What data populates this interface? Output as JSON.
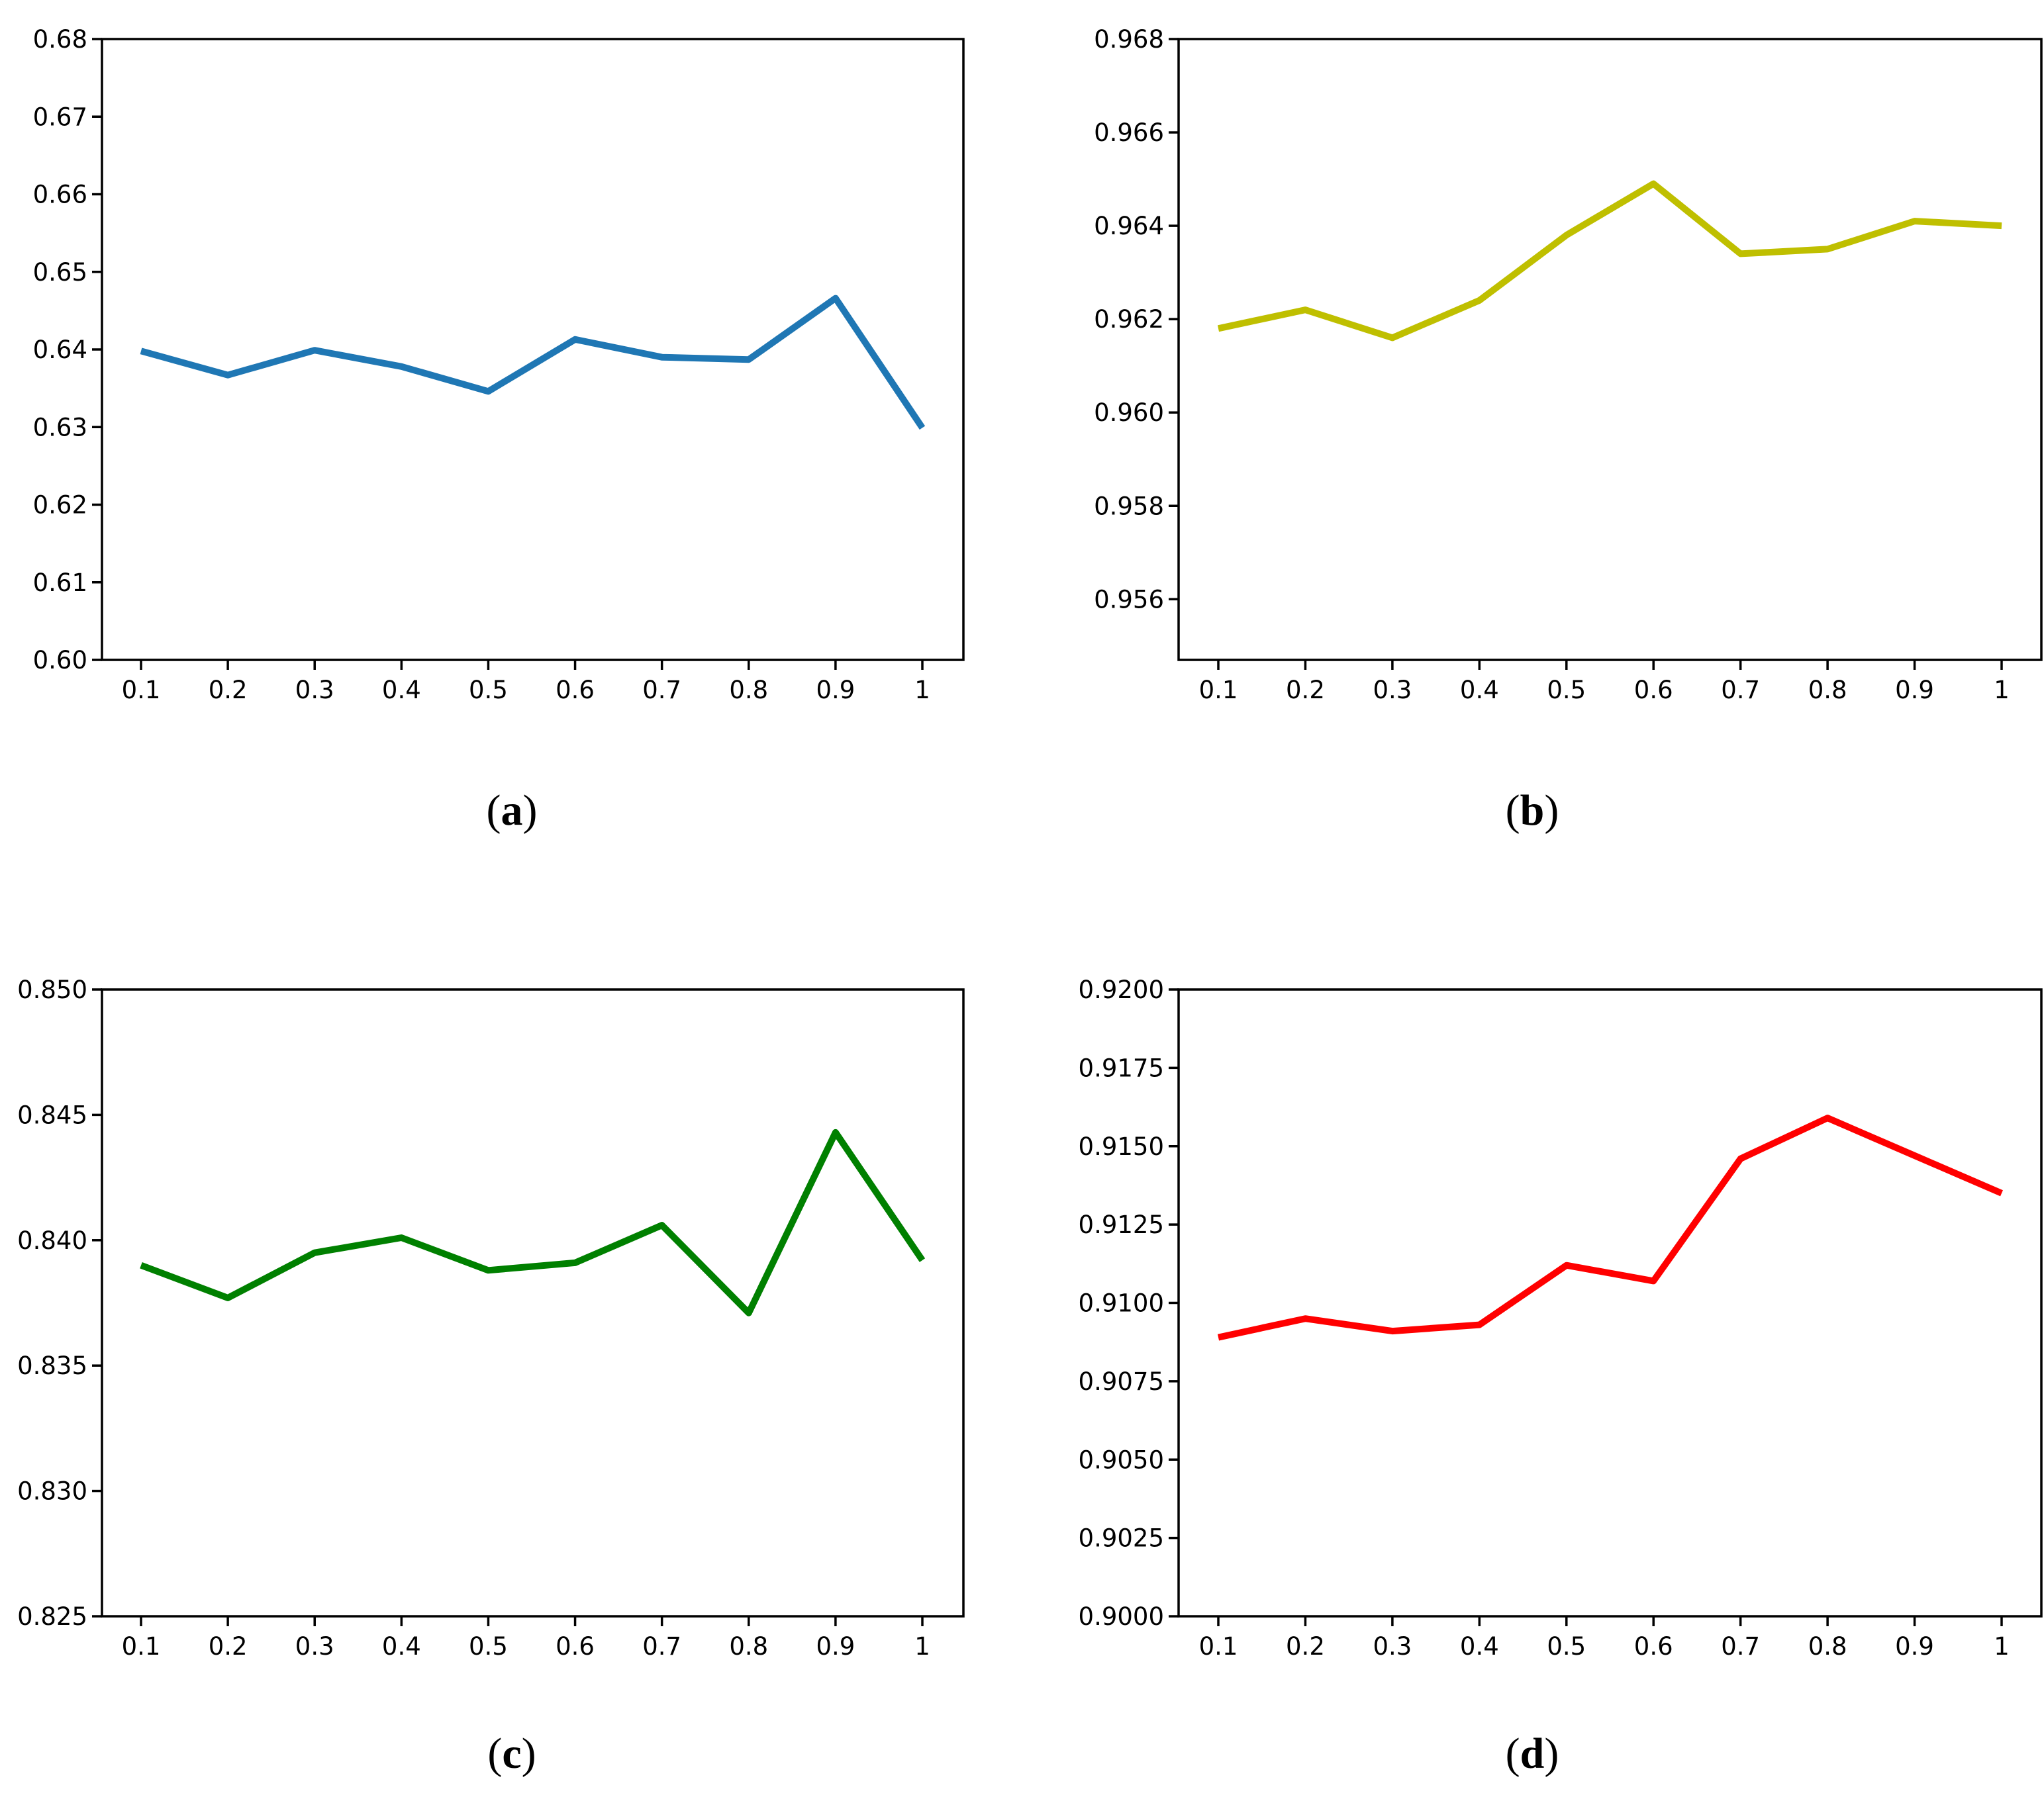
{
  "figure_background": "#ffffff",
  "axis_color": "#000000",
  "chart_data": [
    {
      "id": "a",
      "type": "line",
      "caption_open": "(",
      "caption_letter": "a",
      "caption_close": ")",
      "line_color": "#1f77b4",
      "x": [
        0.1,
        0.2,
        0.3,
        0.4,
        0.5,
        0.6,
        0.7,
        0.8,
        0.9,
        1.0
      ],
      "x_tick_labels": [
        "0.1",
        "0.2",
        "0.3",
        "0.4",
        "0.5",
        "0.6",
        "0.7",
        "0.8",
        "0.9",
        "1"
      ],
      "values": [
        0.6398,
        0.6367,
        0.6399,
        0.6378,
        0.6346,
        0.6413,
        0.639,
        0.6387,
        0.6466,
        0.6299
      ],
      "ylim": [
        0.6,
        0.68
      ],
      "y_tick_values": [
        0.6,
        0.61,
        0.62,
        0.63,
        0.64,
        0.65,
        0.66,
        0.67,
        0.68
      ],
      "y_tick_labels": [
        "0.60",
        "0.61",
        "0.62",
        "0.63",
        "0.64",
        "0.65",
        "0.66",
        "0.67",
        "0.68"
      ],
      "title": "",
      "xlabel": "",
      "ylabel": "",
      "grid": false,
      "legend": "none"
    },
    {
      "id": "b",
      "type": "line",
      "caption_open": "(",
      "caption_letter": "b",
      "caption_close": ")",
      "line_color": "#bfbf00",
      "x": [
        0.1,
        0.2,
        0.3,
        0.4,
        0.5,
        0.6,
        0.7,
        0.8,
        0.9,
        1.0
      ],
      "x_tick_labels": [
        "0.1",
        "0.2",
        "0.3",
        "0.4",
        "0.5",
        "0.6",
        "0.7",
        "0.8",
        "0.9",
        "1"
      ],
      "values": [
        0.9618,
        0.9622,
        0.9616,
        0.9624,
        0.9638,
        0.9649,
        0.9634,
        0.9635,
        0.9641,
        0.964
      ],
      "ylim": [
        0.9547,
        0.968
      ],
      "y_tick_values": [
        0.956,
        0.958,
        0.96,
        0.962,
        0.964,
        0.966,
        0.968
      ],
      "y_tick_labels": [
        "0.956",
        "0.958",
        "0.960",
        "0.962",
        "0.964",
        "0.966",
        "0.968"
      ],
      "title": "",
      "xlabel": "",
      "ylabel": "",
      "grid": false,
      "legend": "none"
    },
    {
      "id": "c",
      "type": "line",
      "caption_open": "(",
      "caption_letter": "c",
      "caption_close": ")",
      "line_color": "#008000",
      "x": [
        0.1,
        0.2,
        0.3,
        0.4,
        0.5,
        0.6,
        0.7,
        0.8,
        0.9,
        1.0
      ],
      "x_tick_labels": [
        "0.1",
        "0.2",
        "0.3",
        "0.4",
        "0.5",
        "0.6",
        "0.7",
        "0.8",
        "0.9",
        "1"
      ],
      "values": [
        0.839,
        0.8377,
        0.8395,
        0.8401,
        0.8388,
        0.8391,
        0.8406,
        0.8371,
        0.8443,
        0.8392
      ],
      "ylim": [
        0.825,
        0.85
      ],
      "y_tick_values": [
        0.825,
        0.83,
        0.835,
        0.84,
        0.845,
        0.85
      ],
      "y_tick_labels": [
        "0.825",
        "0.830",
        "0.835",
        "0.840",
        "0.845",
        "0.850"
      ],
      "title": "",
      "xlabel": "",
      "ylabel": "",
      "grid": false,
      "legend": "none"
    },
    {
      "id": "d",
      "type": "line",
      "caption_open": "(",
      "caption_letter": "d",
      "caption_close": ")",
      "line_color": "#ff0000",
      "x": [
        0.1,
        0.2,
        0.3,
        0.4,
        0.5,
        0.6,
        0.7,
        0.8,
        0.9,
        1.0
      ],
      "x_tick_labels": [
        "0.1",
        "0.2",
        "0.3",
        "0.4",
        "0.5",
        "0.6",
        "0.7",
        "0.8",
        "0.9",
        "1"
      ],
      "values": [
        0.9089,
        0.9095,
        0.9091,
        0.9093,
        0.9112,
        0.9107,
        0.9146,
        0.9159,
        0.9147,
        0.9135
      ],
      "ylim": [
        0.9,
        0.92
      ],
      "y_tick_values": [
        0.9,
        0.9025,
        0.905,
        0.9075,
        0.91,
        0.9125,
        0.915,
        0.9175,
        0.92
      ],
      "y_tick_labels": [
        "0.9000",
        "0.9025",
        "0.9050",
        "0.9075",
        "0.9100",
        "0.9125",
        "0.9150",
        "0.9175",
        "0.9200"
      ],
      "title": "",
      "xlabel": "",
      "ylabel": "",
      "grid": false,
      "legend": "none"
    }
  ]
}
